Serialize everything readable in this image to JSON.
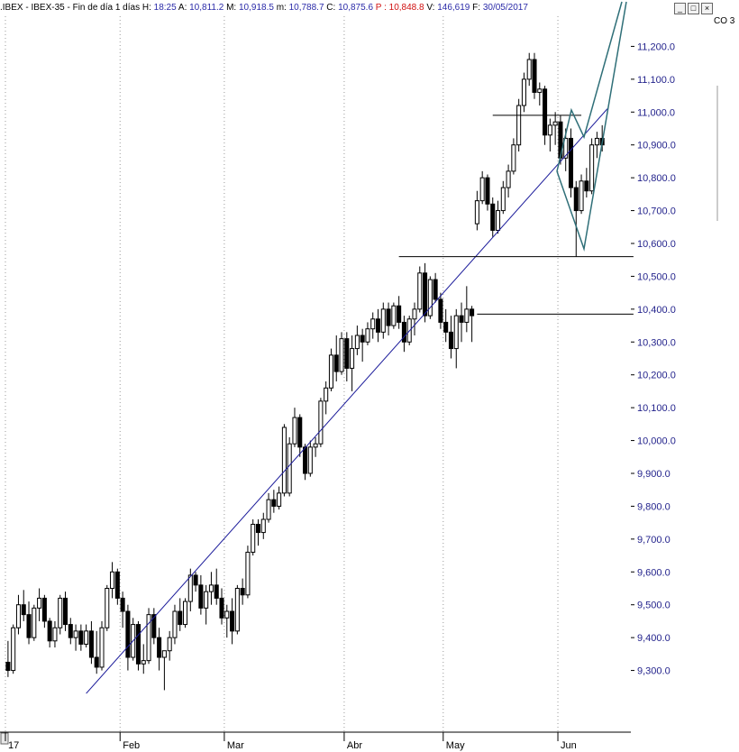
{
  "header": {
    "symbol": ".IBEX - IBEX-35 - Fin de día 1 días",
    "items": [
      {
        "label": "H:",
        "value": "18:25"
      },
      {
        "label": "A:",
        "value": "10,811.2"
      },
      {
        "label": "M:",
        "value": "10,918.5"
      },
      {
        "label": "m:",
        "value": "10,788.7"
      },
      {
        "label": "C:",
        "value": "10,875.6"
      },
      {
        "label": "P :",
        "value": "10,848.8",
        "color": "#d01010"
      },
      {
        "label": "V:",
        "value": "146,619"
      },
      {
        "label": "F:",
        "value": "30/05/2017"
      }
    ],
    "window_buttons": [
      "_",
      "□",
      "×"
    ],
    "side_label": "CO 3"
  },
  "colors": {
    "axis_text": "#23238c",
    "grid": "#9a9a9a",
    "trendline": "#1a1a9a",
    "projection": "#2f6f78",
    "candle_up_fill": "#ffffff",
    "candle_down_fill": "#000000"
  },
  "chart_data": {
    "type": "candlestick",
    "ylim": [
      9200,
      11300
    ],
    "y_ticks": [
      9300,
      9400,
      9500,
      9600,
      9700,
      9800,
      9900,
      10000,
      10100,
      10200,
      10300,
      10400,
      10500,
      10600,
      10700,
      10800,
      10900,
      11000,
      11100,
      11200
    ],
    "y_tick_labels": [
      "9,300.0",
      "9,400.0",
      "9,500.0",
      "9,600.0",
      "9,700.0",
      "9,800.0",
      "9,900.0",
      "10,000.0",
      "10,100.0",
      "10,200.0",
      "10,300.0",
      "10,400.0",
      "10,500.0",
      "10,600.0",
      "10,700.0",
      "10,800.0",
      "10,900.0",
      "11,000.0",
      "11,100.0",
      "11,200.0"
    ],
    "x_labels": [
      {
        "label": "17",
        "bar": 0
      },
      {
        "label": "Feb",
        "bar": 22
      },
      {
        "label": "Mar",
        "bar": 42
      },
      {
        "label": "Abr",
        "bar": 65
      },
      {
        "label": "May",
        "bar": 84
      },
      {
        "label": "Jun",
        "bar": 106
      }
    ],
    "bar_count": 120,
    "grid": "dotted vertical",
    "candles": [
      [
        9325,
        9390,
        9280,
        9300
      ],
      [
        9300,
        9440,
        9290,
        9430
      ],
      [
        9430,
        9530,
        9410,
        9500
      ],
      [
        9500,
        9545,
        9450,
        9470
      ],
      [
        9470,
        9510,
        9380,
        9400
      ],
      [
        9400,
        9500,
        9390,
        9490
      ],
      [
        9490,
        9550,
        9450,
        9520
      ],
      [
        9520,
        9530,
        9430,
        9450
      ],
      [
        9450,
        9460,
        9370,
        9390
      ],
      [
        9390,
        9450,
        9370,
        9430
      ],
      [
        9430,
        9530,
        9410,
        9520
      ],
      [
        9520,
        9540,
        9420,
        9440
      ],
      [
        9440,
        9460,
        9380,
        9400
      ],
      [
        9400,
        9440,
        9360,
        9420
      ],
      [
        9420,
        9440,
        9360,
        9380
      ],
      [
        9380,
        9440,
        9370,
        9420
      ],
      [
        9420,
        9450,
        9320,
        9340
      ],
      [
        9340,
        9420,
        9290,
        9310
      ],
      [
        9310,
        9450,
        9300,
        9430
      ],
      [
        9430,
        9560,
        9420,
        9550
      ],
      [
        9550,
        9630,
        9520,
        9600
      ],
      [
        9600,
        9610,
        9500,
        9520
      ],
      [
        9520,
        9540,
        9430,
        9480
      ],
      [
        9480,
        9500,
        9300,
        9340
      ],
      [
        9340,
        9460,
        9330,
        9440
      ],
      [
        9440,
        9450,
        9300,
        9320
      ],
      [
        9320,
        9380,
        9290,
        9330
      ],
      [
        9330,
        9490,
        9320,
        9470
      ],
      [
        9470,
        9490,
        9380,
        9400
      ],
      [
        9400,
        9430,
        9300,
        9340
      ],
      [
        9340,
        9350,
        9240,
        9360
      ],
      [
        9360,
        9420,
        9330,
        9400
      ],
      [
        9400,
        9500,
        9380,
        9480
      ],
      [
        9480,
        9520,
        9420,
        9440
      ],
      [
        9440,
        9520,
        9430,
        9510
      ],
      [
        9510,
        9610,
        9480,
        9590
      ],
      [
        9590,
        9600,
        9540,
        9560
      ],
      [
        9560,
        9590,
        9470,
        9490
      ],
      [
        9490,
        9560,
        9440,
        9540
      ],
      [
        9540,
        9600,
        9500,
        9560
      ],
      [
        9560,
        9610,
        9500,
        9520
      ],
      [
        9520,
        9550,
        9440,
        9460
      ],
      [
        9460,
        9500,
        9400,
        9480
      ],
      [
        9480,
        9520,
        9380,
        9420
      ],
      [
        9420,
        9560,
        9410,
        9550
      ],
      [
        9550,
        9580,
        9500,
        9530
      ],
      [
        9530,
        9680,
        9520,
        9660
      ],
      [
        9660,
        9760,
        9650,
        9745
      ],
      [
        9745,
        9760,
        9680,
        9720
      ],
      [
        9720,
        9780,
        9700,
        9760
      ],
      [
        9760,
        9840,
        9750,
        9820
      ],
      [
        9820,
        9850,
        9780,
        9800
      ],
      [
        9800,
        9860,
        9790,
        9840
      ],
      [
        9840,
        10050,
        9830,
        10040
      ],
      [
        9840,
        10010,
        9830,
        9990
      ],
      [
        9990,
        10100,
        9980,
        10070
      ],
      [
        10070,
        10080,
        9950,
        9980
      ],
      [
        9980,
        9990,
        9880,
        9900
      ],
      [
        9900,
        10000,
        9890,
        9980
      ],
      [
        9980,
        10010,
        9950,
        9990
      ],
      [
        9990,
        10130,
        9980,
        10120
      ],
      [
        10120,
        10180,
        10080,
        10160
      ],
      [
        10160,
        10280,
        10150,
        10260
      ],
      [
        10260,
        10320,
        10180,
        10210
      ],
      [
        10210,
        10330,
        10200,
        10310
      ],
      [
        10310,
        10330,
        10180,
        10220
      ],
      [
        10220,
        10320,
        10150,
        10280
      ],
      [
        10280,
        10350,
        10260,
        10320
      ],
      [
        10320,
        10340,
        10240,
        10300
      ],
      [
        10300,
        10360,
        10290,
        10340
      ],
      [
        10340,
        10390,
        10310,
        10370
      ],
      [
        10370,
        10400,
        10300,
        10330
      ],
      [
        10330,
        10420,
        10310,
        10400
      ],
      [
        10400,
        10420,
        10320,
        10350
      ],
      [
        10350,
        10420,
        10340,
        10410
      ],
      [
        10410,
        10440,
        10340,
        10360
      ],
      [
        10360,
        10380,
        10270,
        10300
      ],
      [
        10300,
        10380,
        10290,
        10370
      ],
      [
        10370,
        10420,
        10320,
        10400
      ],
      [
        10400,
        10530,
        10390,
        10510
      ],
      [
        10510,
        10540,
        10360,
        10380
      ],
      [
        10380,
        10500,
        10370,
        10490
      ],
      [
        10490,
        10510,
        10420,
        10430
      ],
      [
        10430,
        10450,
        10340,
        10360
      ],
      [
        10360,
        10400,
        10300,
        10330
      ],
      [
        10330,
        10380,
        10250,
        10280
      ],
      [
        10280,
        10400,
        10220,
        10380
      ],
      [
        10380,
        10420,
        10300,
        10360
      ],
      [
        10360,
        10470,
        10330,
        10400
      ],
      [
        10400,
        10410,
        10300,
        10380
      ],
      [
        10660,
        10760,
        10640,
        10730
      ],
      [
        10730,
        10820,
        10720,
        10800
      ],
      [
        10800,
        10810,
        10700,
        10720
      ],
      [
        10720,
        10740,
        10620,
        10640
      ],
      [
        10640,
        10730,
        10630,
        10700
      ],
      [
        10700,
        10790,
        10690,
        10770
      ],
      [
        10770,
        10840,
        10740,
        10820
      ],
      [
        10820,
        10920,
        10810,
        10900
      ],
      [
        10900,
        11040,
        10880,
        11020
      ],
      [
        11020,
        11120,
        11000,
        11100
      ],
      [
        11100,
        11180,
        11080,
        11160
      ],
      [
        11160,
        11180,
        11040,
        11060
      ],
      [
        11060,
        11090,
        11020,
        11070
      ],
      [
        11070,
        11080,
        10900,
        10930
      ],
      [
        10930,
        10980,
        10880,
        10960
      ],
      [
        10960,
        11000,
        10900,
        10970
      ],
      [
        10970,
        10990,
        10840,
        10860
      ],
      [
        10860,
        10950,
        10820,
        10920
      ],
      [
        10920,
        10950,
        10740,
        10770
      ],
      [
        10770,
        10790,
        10560,
        10700
      ],
      [
        10700,
        10810,
        10690,
        10790
      ],
      [
        10790,
        10830,
        10740,
        10760
      ],
      [
        10760,
        10920,
        10750,
        10900
      ],
      [
        10900,
        10940,
        10860,
        10920
      ],
      [
        10920,
        10960,
        10880,
        10900
      ]
    ],
    "lines": [
      {
        "name": "trendline",
        "points": [
          [
            15,
            9230
          ],
          [
            115,
            11010
          ]
        ]
      },
      {
        "name": "resistance",
        "points": [
          [
            90,
            10385
          ],
          [
            120,
            10385
          ]
        ]
      },
      {
        "name": "support",
        "points": [
          [
            75,
            10560
          ],
          [
            120,
            10560
          ]
        ]
      },
      {
        "name": "top-level",
        "points": [
          [
            93,
            10990
          ],
          [
            110,
            10990
          ]
        ]
      }
    ]
  }
}
